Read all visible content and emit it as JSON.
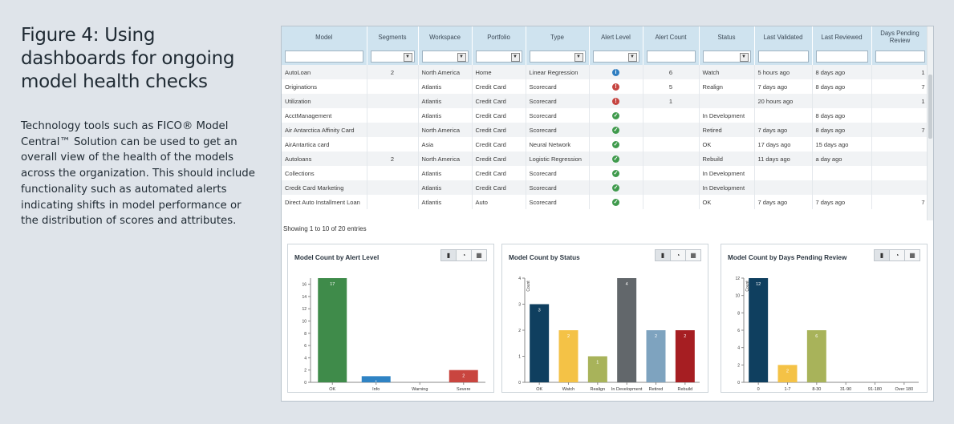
{
  "figure": {
    "title": "Figure 4: Using dashboards for ongoing model health checks",
    "description": "Technology tools such as FICO® Model Central™ Solution can be used to get an overall view of the health of the models across the organization. This should include functionality such as automated alerts indicating shifts in model performance or the distribution of scores and attributes."
  },
  "table": {
    "columns": [
      "Model",
      "Segments",
      "Workspace",
      "Portfolio",
      "Type",
      "Alert Level",
      "Alert Count",
      "Status",
      "Last Validated",
      "Last Reviewed",
      "Days Pending Review"
    ],
    "rows": [
      {
        "model": "AutoLoan",
        "segments": "2",
        "workspace": "North America",
        "portfolio": "Home",
        "type": "Linear Regression",
        "alert": "info",
        "alert_count": "6",
        "status": "Watch",
        "last_validated": "5 hours ago",
        "last_reviewed": "8 days ago",
        "days_pending": "1"
      },
      {
        "model": "Originations",
        "segments": "",
        "workspace": "Atlantis",
        "portfolio": "Credit Card",
        "type": "Scorecard",
        "alert": "severe",
        "alert_count": "5",
        "status": "Realign",
        "last_validated": "7 days ago",
        "last_reviewed": "8 days ago",
        "days_pending": "7"
      },
      {
        "model": "Utilization",
        "segments": "",
        "workspace": "Atlantis",
        "portfolio": "Credit Card",
        "type": "Scorecard",
        "alert": "severe",
        "alert_count": "1",
        "status": "",
        "last_validated": "20 hours ago",
        "last_reviewed": "",
        "days_pending": "1"
      },
      {
        "model": "AcctManagement",
        "segments": "",
        "workspace": "Atlantis",
        "portfolio": "Credit Card",
        "type": "Scorecard",
        "alert": "ok",
        "alert_count": "",
        "status": "In Development",
        "last_validated": "",
        "last_reviewed": "8 days ago",
        "days_pending": ""
      },
      {
        "model": "Air Antarctica Affinity Card",
        "segments": "",
        "workspace": "North America",
        "portfolio": "Credit Card",
        "type": "Scorecard",
        "alert": "ok",
        "alert_count": "",
        "status": "Retired",
        "last_validated": "7 days ago",
        "last_reviewed": "8 days ago",
        "days_pending": "7"
      },
      {
        "model": "AirAntartica card",
        "segments": "",
        "workspace": "Asia",
        "portfolio": "Credit Card",
        "type": "Neural Network",
        "alert": "ok",
        "alert_count": "",
        "status": "OK",
        "last_validated": "17 days ago",
        "last_reviewed": "15 days ago",
        "days_pending": ""
      },
      {
        "model": "Autoloans",
        "segments": "2",
        "workspace": "North America",
        "portfolio": "Credit Card",
        "type": "Logistic Regression",
        "alert": "ok",
        "alert_count": "",
        "status": "Rebuild",
        "last_validated": "11 days ago",
        "last_reviewed": "a day ago",
        "days_pending": ""
      },
      {
        "model": "Collections",
        "segments": "",
        "workspace": "Atlantis",
        "portfolio": "Credit Card",
        "type": "Scorecard",
        "alert": "ok",
        "alert_count": "",
        "status": "In Development",
        "last_validated": "",
        "last_reviewed": "",
        "days_pending": ""
      },
      {
        "model": "Credit Card Marketing",
        "segments": "",
        "workspace": "Atlantis",
        "portfolio": "Credit Card",
        "type": "Scorecard",
        "alert": "ok",
        "alert_count": "",
        "status": "In Development",
        "last_validated": "",
        "last_reviewed": "",
        "days_pending": ""
      },
      {
        "model": "Direct Auto Installment Loan",
        "segments": "",
        "workspace": "Atlantis",
        "portfolio": "Auto",
        "type": "Scorecard",
        "alert": "ok",
        "alert_count": "",
        "status": "OK",
        "last_validated": "7 days ago",
        "last_reviewed": "7 days ago",
        "days_pending": "7"
      }
    ],
    "showing": "Showing 1 to 10 of 20 entries",
    "alert_colors": {
      "info": "#2f7ec1",
      "severe": "#c64541",
      "ok": "#3f9a4c"
    },
    "alert_glyphs": {
      "info": "i",
      "severe": "!",
      "ok": "✓"
    }
  },
  "tools": {
    "bar": "bar-chart-icon",
    "pie": "pie-chart-icon",
    "table": "table-icon"
  },
  "chart_data": [
    {
      "type": "bar",
      "title": "Model Count by Alert Level",
      "categories": [
        "OK",
        "Info",
        "Warning",
        "Severe"
      ],
      "values": [
        17,
        1,
        0,
        2
      ],
      "colors": [
        "#3f8b4a",
        "#2f83c4",
        "#999999",
        "#c9453f"
      ],
      "ylabel": "",
      "ylim": [
        0,
        17
      ],
      "yticks": [
        0,
        2,
        4,
        6,
        8,
        10,
        12,
        14,
        16
      ],
      "grid": false
    },
    {
      "type": "bar",
      "title": "Model Count by Status",
      "categories": [
        "OK",
        "Watch",
        "Realign",
        "In Development",
        "Retired",
        "Rebuild"
      ],
      "values": [
        3,
        2,
        1,
        4,
        2,
        2
      ],
      "colors": [
        "#0f3f5f",
        "#f4c246",
        "#a8b35a",
        "#62676b",
        "#7ea3bf",
        "#a61e22"
      ],
      "ylabel": "Count",
      "ylim": [
        0,
        4
      ],
      "yticks": [
        0,
        1,
        2,
        3,
        4
      ],
      "grid": false
    },
    {
      "type": "bar",
      "title": "Model Count by Days Pending Review",
      "categories": [
        "0",
        "1-7",
        "8-30",
        "31-90",
        "91-180",
        "Over 180"
      ],
      "values": [
        12,
        2,
        6,
        0,
        0,
        0
      ],
      "colors": [
        "#0f3f5f",
        "#f4c246",
        "#a8b35a",
        "#999999",
        "#999999",
        "#999999"
      ],
      "ylabel": "Count",
      "ylim": [
        0,
        12
      ],
      "yticks": [
        0,
        2,
        4,
        6,
        8,
        10,
        12
      ],
      "grid": false
    }
  ]
}
